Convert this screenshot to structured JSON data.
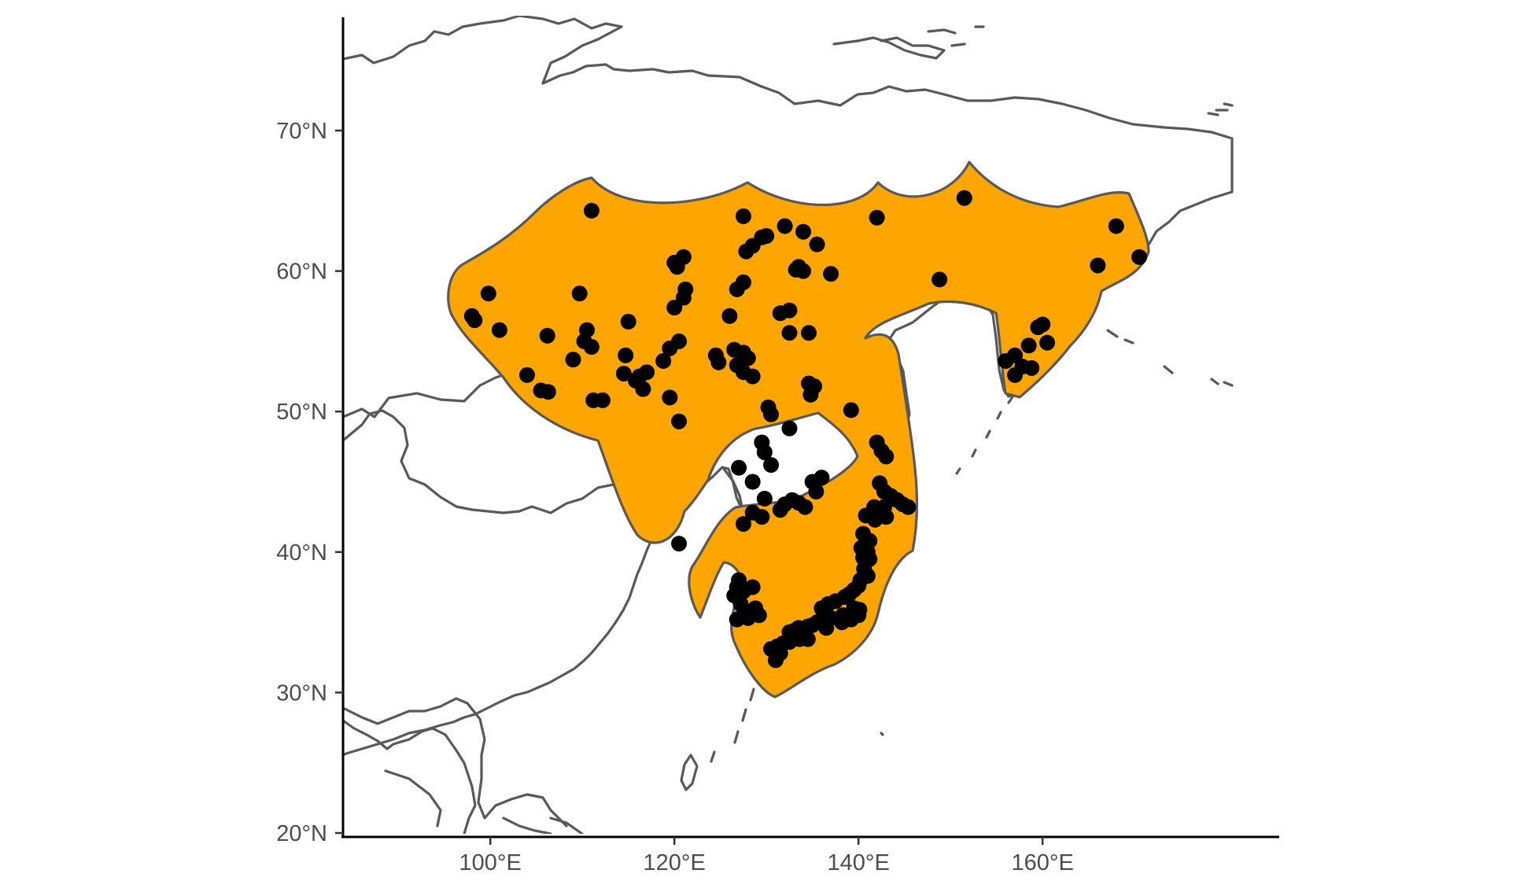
{
  "chart_data": {
    "type": "map",
    "title": "",
    "xlabel": "",
    "ylabel": "",
    "xlim": [
      84,
      182
    ],
    "ylim": [
      19.5,
      77.5
    ],
    "x_ticks": [
      {
        "value": 100,
        "label": "100°E"
      },
      {
        "value": 120,
        "label": "120°E"
      },
      {
        "value": 140,
        "label": "140°E"
      },
      {
        "value": 160,
        "label": "160°E"
      }
    ],
    "y_ticks": [
      {
        "value": 20,
        "label": "20°N"
      },
      {
        "value": 30,
        "label": "30°N"
      },
      {
        "value": 40,
        "label": "40°N"
      },
      {
        "value": 50,
        "label": "50°N"
      },
      {
        "value": 60,
        "label": "60°N"
      },
      {
        "value": 70,
        "label": "70°N"
      }
    ],
    "range_fill_color": "#FFA500",
    "range_outline_color": "#595959",
    "point_color": "#000000",
    "coastline_color": "#595959",
    "grid": false,
    "legend": "none",
    "occurrence_points": [
      [
        111,
        64.3
      ],
      [
        127.5,
        63.9
      ],
      [
        132,
        63.2
      ],
      [
        134,
        62.8
      ],
      [
        135.5,
        61.9
      ],
      [
        129.5,
        62.4
      ],
      [
        128.5,
        61.8
      ],
      [
        127.8,
        61.4
      ],
      [
        130,
        62.5
      ],
      [
        120,
        60.6
      ],
      [
        121,
        61
      ],
      [
        120.3,
        60.3
      ],
      [
        99.8,
        58.4
      ],
      [
        109.7,
        58.4
      ],
      [
        121.2,
        58.7
      ],
      [
        121,
        58.1
      ],
      [
        127.5,
        59.2
      ],
      [
        126.8,
        58.7
      ],
      [
        133.2,
        60.1
      ],
      [
        134,
        60
      ],
      [
        133.5,
        60.3
      ],
      [
        137,
        59.8
      ],
      [
        131.5,
        57
      ],
      [
        132.5,
        57.2
      ],
      [
        126,
        56.8
      ],
      [
        120,
        57.4
      ],
      [
        115,
        56.4
      ],
      [
        98,
        56.8
      ],
      [
        98.3,
        56.5
      ],
      [
        101,
        55.8
      ],
      [
        106.2,
        55.4
      ],
      [
        110.5,
        55.8
      ],
      [
        110.2,
        55
      ],
      [
        111,
        54.6
      ],
      [
        119.5,
        54.5
      ],
      [
        120.5,
        55
      ],
      [
        124.5,
        54
      ],
      [
        124.8,
        53.5
      ],
      [
        126.5,
        54.4
      ],
      [
        127.5,
        54.2
      ],
      [
        128,
        53.8
      ],
      [
        126.8,
        53.3
      ],
      [
        127.5,
        52.8
      ],
      [
        128.5,
        52.5
      ],
      [
        132.5,
        55.6
      ],
      [
        134.6,
        55.6
      ],
      [
        109,
        53.7
      ],
      [
        114.7,
        54
      ],
      [
        118.8,
        53.6
      ],
      [
        117,
        52.8
      ],
      [
        116.2,
        52.5
      ],
      [
        114.5,
        52.7
      ],
      [
        115.8,
        52.2
      ],
      [
        104,
        52.6
      ],
      [
        105.5,
        51.5
      ],
      [
        106.3,
        51.4
      ],
      [
        111.2,
        50.8
      ],
      [
        112.2,
        50.8
      ],
      [
        116.6,
        51.6
      ],
      [
        119.5,
        51
      ],
      [
        120.5,
        49.3
      ],
      [
        134.6,
        52
      ],
      [
        135.2,
        51.8
      ],
      [
        134.8,
        51.2
      ],
      [
        130.2,
        50.3
      ],
      [
        130.5,
        49.8
      ],
      [
        139.2,
        50.1
      ],
      [
        132.5,
        48.8
      ],
      [
        129.5,
        47.8
      ],
      [
        129.8,
        47.1
      ],
      [
        130.5,
        46.2
      ],
      [
        127,
        46
      ],
      [
        128.5,
        45
      ],
      [
        135,
        45
      ],
      [
        136,
        45.3
      ],
      [
        135.4,
        44.3
      ],
      [
        129.8,
        43.8
      ],
      [
        128.5,
        42.8
      ],
      [
        129.5,
        42.5
      ],
      [
        127.5,
        42
      ],
      [
        132,
        43.4
      ],
      [
        132.8,
        43.7
      ],
      [
        133.5,
        43.5
      ],
      [
        134.2,
        43.2
      ],
      [
        131.5,
        43
      ],
      [
        120.5,
        40.6
      ],
      [
        142,
        63.8
      ],
      [
        148.8,
        59.4
      ],
      [
        151.5,
        65.2
      ],
      [
        166,
        60.4
      ],
      [
        168,
        63.2
      ],
      [
        170.5,
        61
      ],
      [
        160,
        56.2
      ],
      [
        159.5,
        56
      ],
      [
        160.5,
        54.9
      ],
      [
        158.5,
        54.7
      ],
      [
        157,
        54
      ],
      [
        156,
        53.6
      ],
      [
        157.8,
        53.2
      ],
      [
        158.8,
        53.1
      ],
      [
        157,
        52.6
      ],
      [
        142,
        47.8
      ],
      [
        142.5,
        47.2
      ],
      [
        143,
        46.8
      ],
      [
        142.3,
        44.9
      ],
      [
        142.8,
        44.3
      ],
      [
        143.5,
        44
      ],
      [
        144.2,
        43.7
      ],
      [
        144.8,
        43.4
      ],
      [
        145.4,
        43.2
      ],
      [
        141.7,
        43.2
      ],
      [
        142.8,
        43.2
      ],
      [
        140.8,
        42.6
      ],
      [
        141.8,
        42.3
      ],
      [
        143,
        42.5
      ],
      [
        140.5,
        41.3
      ],
      [
        141.2,
        40.8
      ],
      [
        140.3,
        40.3
      ],
      [
        141,
        40
      ],
      [
        140.5,
        39.6
      ],
      [
        141.2,
        39.5
      ],
      [
        140.6,
        38.8
      ],
      [
        141,
        38.3
      ],
      [
        140.2,
        38
      ],
      [
        140,
        37.6
      ],
      [
        139.5,
        37.3
      ],
      [
        139,
        37
      ],
      [
        138.5,
        36.8
      ],
      [
        137.5,
        36.5
      ],
      [
        136.7,
        36.3
      ],
      [
        136,
        36
      ],
      [
        139.5,
        36
      ],
      [
        139.8,
        35.8
      ],
      [
        140.1,
        35.9
      ],
      [
        138.3,
        35.5
      ],
      [
        137,
        35.3
      ],
      [
        135.8,
        35.1
      ],
      [
        135.5,
        35
      ],
      [
        135,
        34.8
      ],
      [
        134.5,
        34.7
      ],
      [
        133.5,
        34.6
      ],
      [
        133,
        34.4
      ],
      [
        132.5,
        34.3
      ],
      [
        133.6,
        33.8
      ],
      [
        134.5,
        33.8
      ],
      [
        132.5,
        33.6
      ],
      [
        131.8,
        33.5
      ],
      [
        131.2,
        33.3
      ],
      [
        130.5,
        33.1
      ],
      [
        131,
        32.3
      ],
      [
        131.5,
        32.8
      ],
      [
        136.5,
        34.6
      ],
      [
        138.2,
        35
      ],
      [
        139.2,
        35.2
      ],
      [
        140,
        35.5
      ],
      [
        127,
        38
      ],
      [
        126.8,
        37.5
      ],
      [
        127.5,
        37.2
      ],
      [
        128.5,
        37.5
      ],
      [
        126.5,
        36.9
      ],
      [
        127.2,
        36.3
      ],
      [
        128.8,
        36
      ],
      [
        129.2,
        35.5
      ],
      [
        127.6,
        35.7
      ],
      [
        128,
        35.3
      ],
      [
        126.8,
        35.2
      ]
    ]
  }
}
